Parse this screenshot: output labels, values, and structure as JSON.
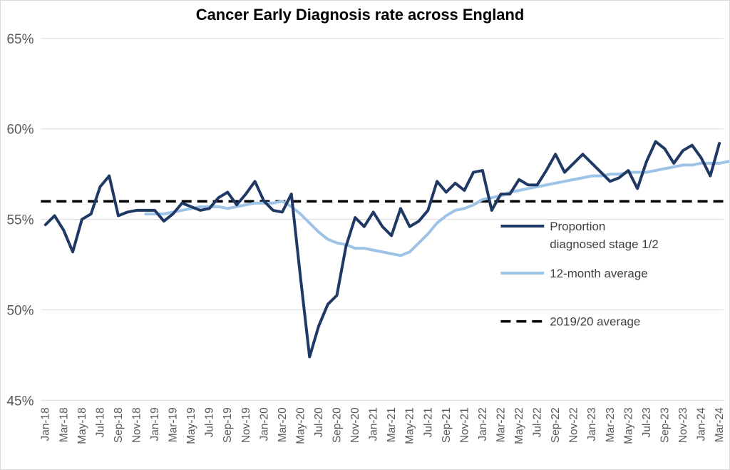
{
  "chart_data": {
    "type": "line",
    "title": "Cancer Early Diagnosis rate across England",
    "xlabel": "",
    "ylabel": "",
    "ylim": [
      45,
      65
    ],
    "y_ticks": [
      45,
      50,
      55,
      60,
      65
    ],
    "y_tick_labels": [
      "45%",
      "50%",
      "55%",
      "60%",
      "65%"
    ],
    "x_tick_labels": [
      "Jan-18",
      "Mar-18",
      "May-18",
      "Jul-18",
      "Sep-18",
      "Nov-18",
      "Jan-19",
      "Mar-19",
      "May-19",
      "Jul-19",
      "Sep-19",
      "Nov-19",
      "Jan-20",
      "Mar-20",
      "May-20",
      "Jul-20",
      "Sep-20",
      "Nov-20",
      "Jan-21",
      "Mar-21",
      "May-21",
      "Jul-21",
      "Sep-21",
      "Nov-21",
      "Jan-22",
      "Mar-22",
      "May-22",
      "Jul-22",
      "Sep-22",
      "Nov-22",
      "Jan-23",
      "Mar-23",
      "May-23",
      "Jul-23",
      "Sep-23",
      "Nov-23",
      "Jan-24",
      "Mar-24"
    ],
    "n_months": 75,
    "series": [
      {
        "name": "Proportion diagnosed stage 1/2",
        "legend_lines": [
          "Proportion",
          "diagnosed stage 1/2"
        ],
        "color": "#1f3864",
        "style": "solid",
        "start_index": 0,
        "values": [
          54.7,
          55.2,
          54.4,
          53.2,
          55.0,
          55.3,
          56.8,
          57.4,
          55.2,
          55.4,
          55.5,
          55.5,
          55.5,
          54.9,
          55.3,
          55.9,
          55.7,
          55.5,
          55.6,
          56.2,
          56.5,
          55.8,
          56.4,
          57.1,
          56.0,
          55.5,
          55.4,
          56.4,
          51.8,
          47.4,
          49.1,
          50.3,
          50.8,
          53.5,
          55.1,
          54.6,
          55.4,
          54.6,
          54.1,
          55.6,
          54.6,
          54.9,
          55.5,
          57.1,
          56.5,
          57.0,
          56.6,
          57.6,
          57.7,
          55.5,
          56.4,
          56.4,
          57.2,
          56.9,
          56.9,
          57.7,
          58.6,
          57.6,
          58.1,
          58.6,
          58.1,
          57.6,
          57.1,
          57.3,
          57.7,
          56.7,
          58.2,
          59.3,
          58.9,
          58.1,
          58.8,
          59.1,
          58.4,
          57.4,
          59.2
        ]
      },
      {
        "name": "12-month average",
        "legend_lines": [
          "12-month average"
        ],
        "color": "#9dc3e6",
        "style": "solid",
        "start_index": 11,
        "values": [
          55.3,
          55.3,
          55.3,
          55.4,
          55.5,
          55.6,
          55.7,
          55.7,
          55.7,
          55.6,
          55.7,
          55.8,
          55.9,
          55.9,
          55.9,
          56.0,
          55.7,
          55.3,
          54.8,
          54.3,
          53.9,
          53.7,
          53.6,
          53.4,
          53.4,
          53.3,
          53.2,
          53.1,
          53.0,
          53.2,
          53.7,
          54.2,
          54.8,
          55.2,
          55.5,
          55.6,
          55.8,
          56.1,
          56.2,
          56.3,
          56.5,
          56.6,
          56.7,
          56.8,
          56.9,
          57.0,
          57.1,
          57.2,
          57.3,
          57.4,
          57.4,
          57.5,
          57.5,
          57.6,
          57.6,
          57.6,
          57.7,
          57.8,
          57.9,
          58.0,
          58.0,
          58.1,
          58.1,
          58.1,
          58.2
        ]
      },
      {
        "name": "2019/20 average",
        "legend_lines": [
          "2019/20 average"
        ],
        "color": "#000000",
        "style": "dashed",
        "constant": 56.0
      }
    ],
    "legend_position": "right-middle",
    "grid": true
  }
}
